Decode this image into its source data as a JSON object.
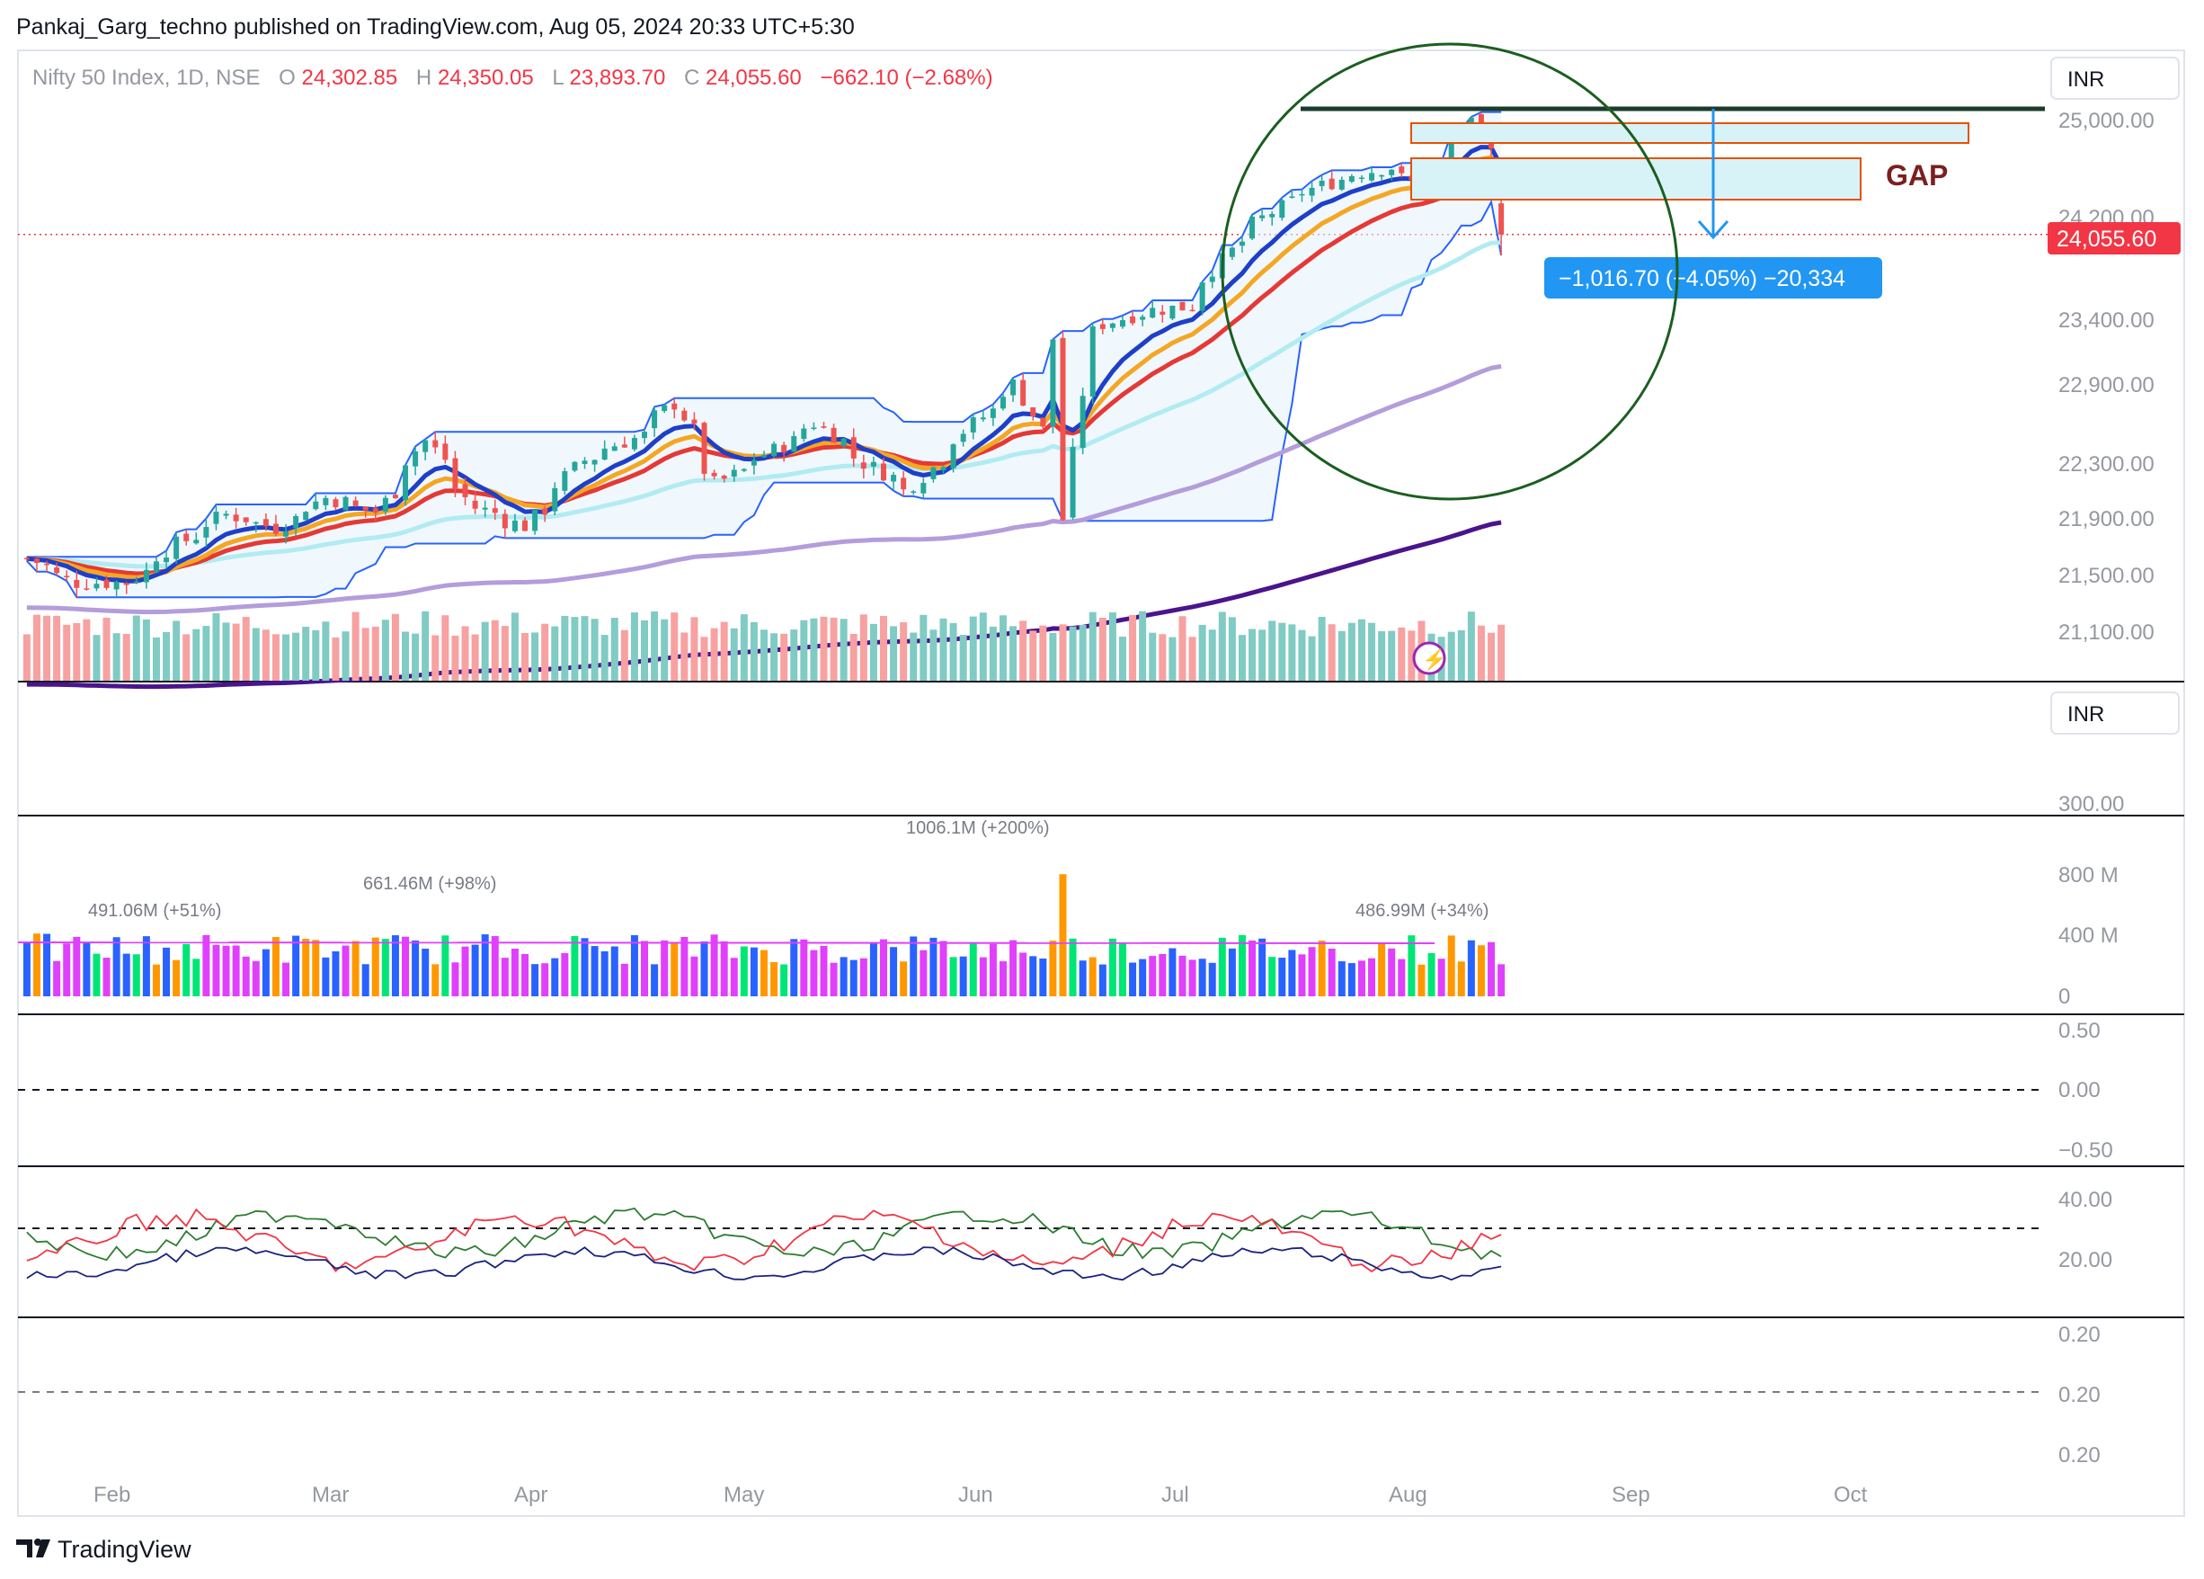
{
  "header": {
    "published_by": "Pankaj_Garg_techno published on TradingView.com, Aug 05, 2024 20:33 UTC+5:30"
  },
  "legend": {
    "symbol": "Nifty 50 Index, 1D, NSE",
    "o_label": "O",
    "o_value": "24,302.85",
    "h_label": "H",
    "h_value": "24,350.05",
    "l_label": "L",
    "l_value": "23,893.70",
    "c_label": "C",
    "c_value": "24,055.60",
    "change": "−662.10 (−2.68%)"
  },
  "price_axis": {
    "currency": "INR",
    "ticks": [
      "25,000.00",
      "24,200.00",
      "23,400.00",
      "22,900.00",
      "22,300.00",
      "21,900.00",
      "21,500.00",
      "21,100.00"
    ],
    "last_price": "24,055.60"
  },
  "pane2": {
    "currency": "INR",
    "tick": "300.00"
  },
  "volume_pane": {
    "ticks": [
      "800 M",
      "400 M",
      "0"
    ],
    "labels": [
      "491.06M (+51%)",
      "661.46M (+98%)",
      "1006.1M (+200%)",
      "486.99M (+34%)"
    ]
  },
  "osc_pane": {
    "ticks": [
      "0.50",
      "0.00",
      "−0.50"
    ]
  },
  "dmi_pane": {
    "ticks": [
      "40.00",
      "20.00"
    ]
  },
  "last_pane": {
    "ticks": [
      "0.20",
      "0.20",
      "0.20"
    ]
  },
  "time_axis": {
    "labels": [
      "Feb",
      "Mar",
      "Apr",
      "May",
      "Jun",
      "Jul",
      "Aug",
      "Sep",
      "Oct"
    ]
  },
  "annotations": {
    "gap_label": "GAP",
    "measure_label": "−1,016.70 (−4.05%) −20,334"
  },
  "footer": {
    "brand": "TradingView"
  },
  "colors": {
    "up": "#26a69a",
    "down": "#ef5350",
    "price_line": "#f23645",
    "ema_blue": "#1e3fc8",
    "ema_orange": "#f5a623",
    "ema_red": "#e53935",
    "ema_cyan": "#b2ebf2",
    "sma_purple": "#b39ddb",
    "sma_dark": "#4a148c",
    "channel": "#2962ff",
    "circle": "#1b5e20",
    "gap_box": "#e65100",
    "gap_fill": "#d7f3f8",
    "measure": "#2196f3",
    "gap_text": "#7b1f1f"
  },
  "chart_data": {
    "type": "candlestick",
    "symbol": "Nifty 50 Index",
    "interval": "1D",
    "exchange": "NSE",
    "x_range": [
      "2024-01-09",
      "2024-08-05"
    ],
    "y_range": [
      20900,
      25200
    ],
    "last_bar": {
      "date": "2024-08-05",
      "open": 24302.85,
      "high": 24350.05,
      "low": 23893.7,
      "close": 24055.6,
      "change": -662.1,
      "change_pct": -2.68
    },
    "close_path": [
      [
        "2024-01-10",
        21620
      ],
      [
        "2024-01-17",
        21450
      ],
      [
        "2024-01-24",
        21450
      ],
      [
        "2024-01-31",
        21720
      ],
      [
        "2024-02-07",
        21930
      ],
      [
        "2024-02-14",
        21840
      ],
      [
        "2024-02-21",
        22050
      ],
      [
        "2024-02-28",
        21950
      ],
      [
        "2024-03-06",
        22470
      ],
      [
        "2024-03-13",
        21980
      ],
      [
        "2024-03-20",
        21850
      ],
      [
        "2024-03-28",
        22320
      ],
      [
        "2024-04-05",
        22510
      ],
      [
        "2024-04-10",
        22750
      ],
      [
        "2024-04-16",
        22150
      ],
      [
        "2024-04-24",
        22400
      ],
      [
        "2024-04-30",
        22600
      ],
      [
        "2024-05-07",
        22300
      ],
      [
        "2024-05-13",
        22100
      ],
      [
        "2024-05-22",
        22600
      ],
      [
        "2024-05-28",
        22900
      ],
      [
        "2024-05-31",
        22550
      ],
      [
        "2024-06-03",
        23250
      ],
      [
        "2024-06-04",
        21900
      ],
      [
        "2024-06-07",
        23300
      ],
      [
        "2024-06-14",
        23450
      ],
      [
        "2024-06-21",
        23500
      ],
      [
        "2024-06-28",
        24000
      ],
      [
        "2024-07-05",
        24320
      ],
      [
        "2024-07-12",
        24500
      ],
      [
        "2024-07-19",
        24600
      ],
      [
        "2024-07-24",
        24450
      ],
      [
        "2024-07-31",
        24950
      ],
      [
        "2024-08-02",
        24720
      ],
      [
        "2024-08-05",
        24055.6
      ]
    ],
    "volume_labels_M": [
      491.06,
      661.46,
      1006.1,
      486.99
    ],
    "volume_change_pct": [
      51,
      98,
      200,
      34
    ],
    "measurement": {
      "change": -1016.7,
      "change_pct": -4.05,
      "ticks": -20334
    }
  }
}
